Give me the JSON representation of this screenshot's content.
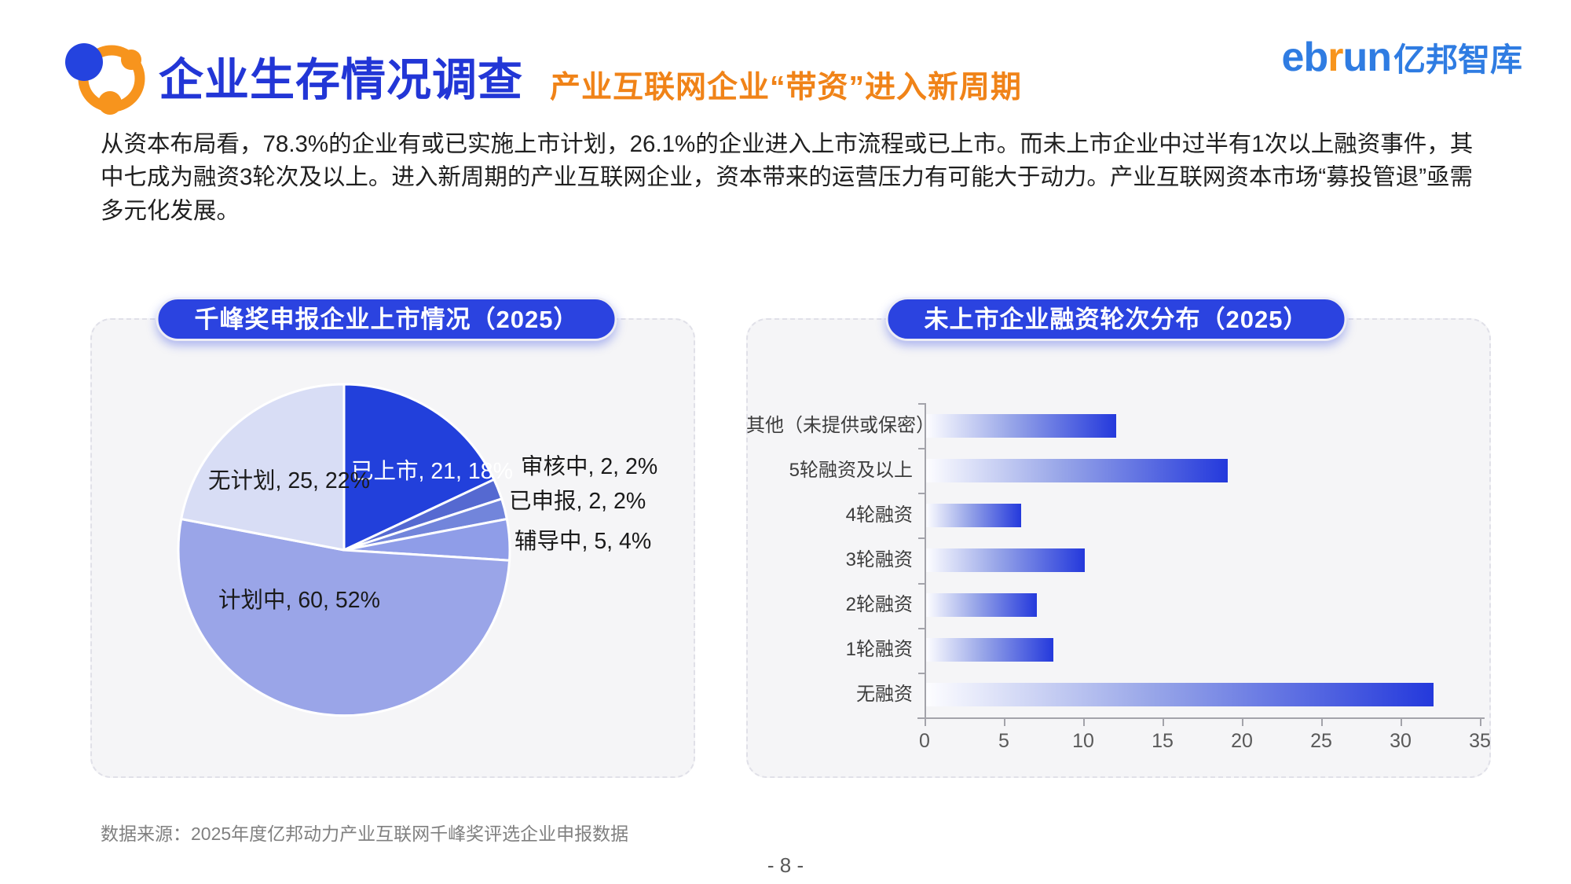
{
  "header": {
    "title": "企业生存情况调查",
    "subtitle": "产业互联网企业“带资”进入新周期",
    "logo": {
      "en_left": "eb",
      "en_r": "r",
      "en_right": "un",
      "cn": "亿邦智库"
    }
  },
  "intro": "从资本布局看，78.3%的企业有或已实施上市计划，26.1%的企业进入上市流程或已上市。而未上市企业中过半有1次以上融资事件，其中七成为融资3轮次及以上。进入新周期的产业互联网企业，资本带来的运营压力有可能大于动力。产业互联网资本市场“募投管退”亟需多元化发展。",
  "chart_data": [
    {
      "type": "pie",
      "title": "千峰奖申报企业上市情况（2025）",
      "label_format": "name, value, pct%",
      "start_angle_deg": 0,
      "direction": "clockwise",
      "slices": [
        {
          "name": "已上市",
          "value": 21,
          "pct": 18,
          "color": "#2240DB"
        },
        {
          "name": "审核中",
          "value": 2,
          "pct": 2,
          "color": "#5569D1"
        },
        {
          "name": "已申报",
          "value": 2,
          "pct": 2,
          "color": "#7285DB"
        },
        {
          "name": "辅导中",
          "value": 5,
          "pct": 4,
          "color": "#8F9DE8"
        },
        {
          "name": "计划中",
          "value": 60,
          "pct": 52,
          "color": "#9AA5E8"
        },
        {
          "name": "无计划",
          "value": 25,
          "pct": 22,
          "color": "#D8DDF5"
        }
      ]
    },
    {
      "type": "bar",
      "title": "未上市企业融资轮次分布（2025）",
      "orientation": "horizontal",
      "categories": [
        "其他（未提供或保密）",
        "5轮融资及以上",
        "4轮融资",
        "3轮融资",
        "2轮融资",
        "1轮融资",
        "无融资"
      ],
      "values": [
        12,
        19,
        6,
        10,
        7,
        8,
        32
      ],
      "xlabel": "",
      "ylabel": "",
      "xlim": [
        0,
        35
      ],
      "xticks": [
        0,
        5,
        10,
        15,
        20,
        25,
        30,
        35
      ],
      "grid": false,
      "bar_gradient": [
        "#FFFFFF",
        "#2439DC"
      ]
    }
  ],
  "footer": {
    "source": "数据来源：2025年度亿邦动力产业互联网千峰奖评选企业申报数据",
    "page": "- 8 -"
  }
}
